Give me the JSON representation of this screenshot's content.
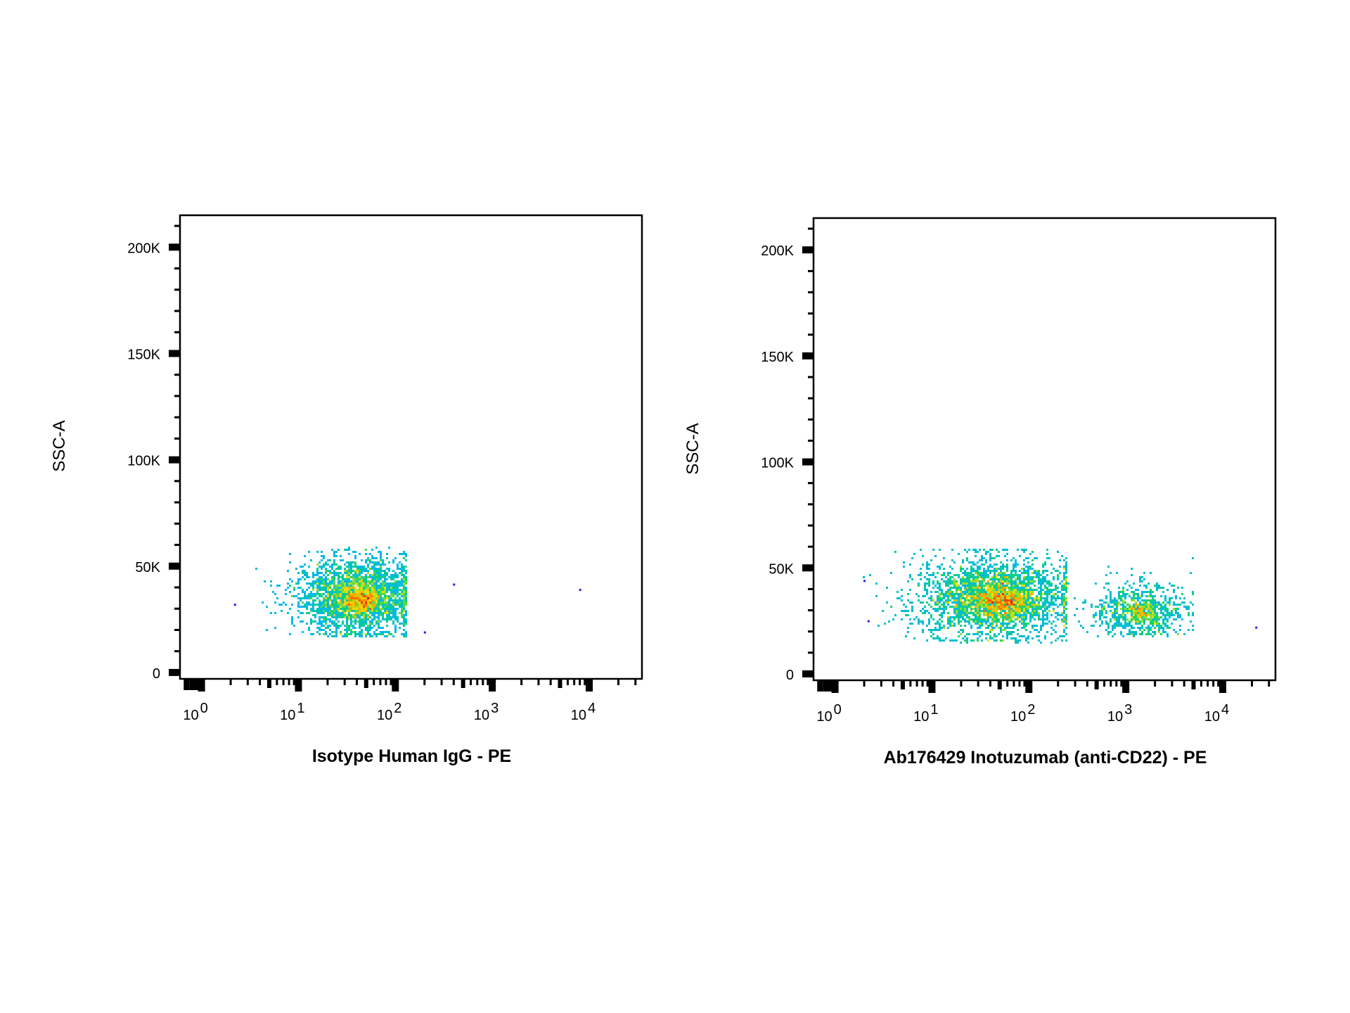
{
  "chart_data": [
    {
      "type": "scatter",
      "subtype": "flow-cytometry density dot plot",
      "xlabel": "Isotype Human IgG - PE",
      "ylabel": "SSC-A",
      "x_scale": "log",
      "x_tick_labels": [
        {
          "base": "10",
          "exp": "0",
          "value": 1
        },
        {
          "base": "10",
          "exp": "1",
          "value": 10
        },
        {
          "base": "10",
          "exp": "2",
          "value": 100
        },
        {
          "base": "10",
          "exp": "3",
          "value": 1000
        },
        {
          "base": "10",
          "exp": "4",
          "value": 10000
        }
      ],
      "xlim": [
        0.6,
        35000
      ],
      "y_tick_labels": [
        {
          "label": "0",
          "value": 0
        },
        {
          "label": "50K",
          "value": 50000
        },
        {
          "label": "100K",
          "value": 100000
        },
        {
          "label": "150K",
          "value": 150000
        },
        {
          "label": "200K",
          "value": 200000
        }
      ],
      "ylim": [
        -3000,
        215000
      ],
      "grid": false,
      "color_scale": [
        "#1f1fff",
        "#00b4ff",
        "#00d27a",
        "#e6e600",
        "#ff8c00",
        "#e00000"
      ],
      "populations": [
        {
          "x_center": 40,
          "x_log_spread": 0.3,
          "y_center": 36000,
          "y_spread": 9000,
          "x_max": 130,
          "y_min": 17000,
          "y_max": 58500,
          "events": 2600,
          "peak_x": 45,
          "peak_y": 34000
        }
      ],
      "outliers": [
        [
          8000,
          39000
        ],
        [
          400,
          41500
        ],
        [
          200,
          19000
        ],
        [
          2.2,
          32000
        ]
      ]
    },
    {
      "type": "scatter",
      "subtype": "flow-cytometry density dot plot",
      "xlabel": "Ab176429 Inotuzumab (anti-CD22) - PE",
      "ylabel": "SSC-A",
      "x_scale": "log",
      "x_tick_labels": [
        {
          "base": "10",
          "exp": "0",
          "value": 1
        },
        {
          "base": "10",
          "exp": "1",
          "value": 10
        },
        {
          "base": "10",
          "exp": "2",
          "value": 100
        },
        {
          "base": "10",
          "exp": "3",
          "value": 1000
        },
        {
          "base": "10",
          "exp": "4",
          "value": 10000
        }
      ],
      "xlim": [
        0.6,
        35000
      ],
      "y_tick_labels": [
        {
          "label": "0",
          "value": 0
        },
        {
          "label": "50K",
          "value": 50000
        },
        {
          "label": "100K",
          "value": 100000
        },
        {
          "label": "150K",
          "value": 150000
        },
        {
          "label": "200K",
          "value": 200000
        }
      ],
      "ylim": [
        -3000,
        215000
      ],
      "grid": false,
      "color_scale": [
        "#1f1fff",
        "#00b4ff",
        "#00d27a",
        "#e6e600",
        "#ff8c00",
        "#e00000"
      ],
      "populations": [
        {
          "x_center": 45,
          "x_log_spread": 0.4,
          "y_center": 36000,
          "y_spread": 9500,
          "x_max": 250,
          "y_min": 15000,
          "y_max": 59000,
          "events": 2800,
          "peak_x": 55,
          "peak_y": 34000
        },
        {
          "x_center": 1400,
          "x_log_spread": 0.24,
          "y_center": 30000,
          "y_spread": 7000,
          "x_max": 5000,
          "y_min": 18000,
          "y_max": 58000,
          "events": 750,
          "peak_x": 1400,
          "peak_y": 29000
        }
      ],
      "outliers": [
        [
          22000,
          22000
        ],
        [
          2.2,
          25000
        ],
        [
          2.0,
          44000
        ]
      ]
    }
  ]
}
